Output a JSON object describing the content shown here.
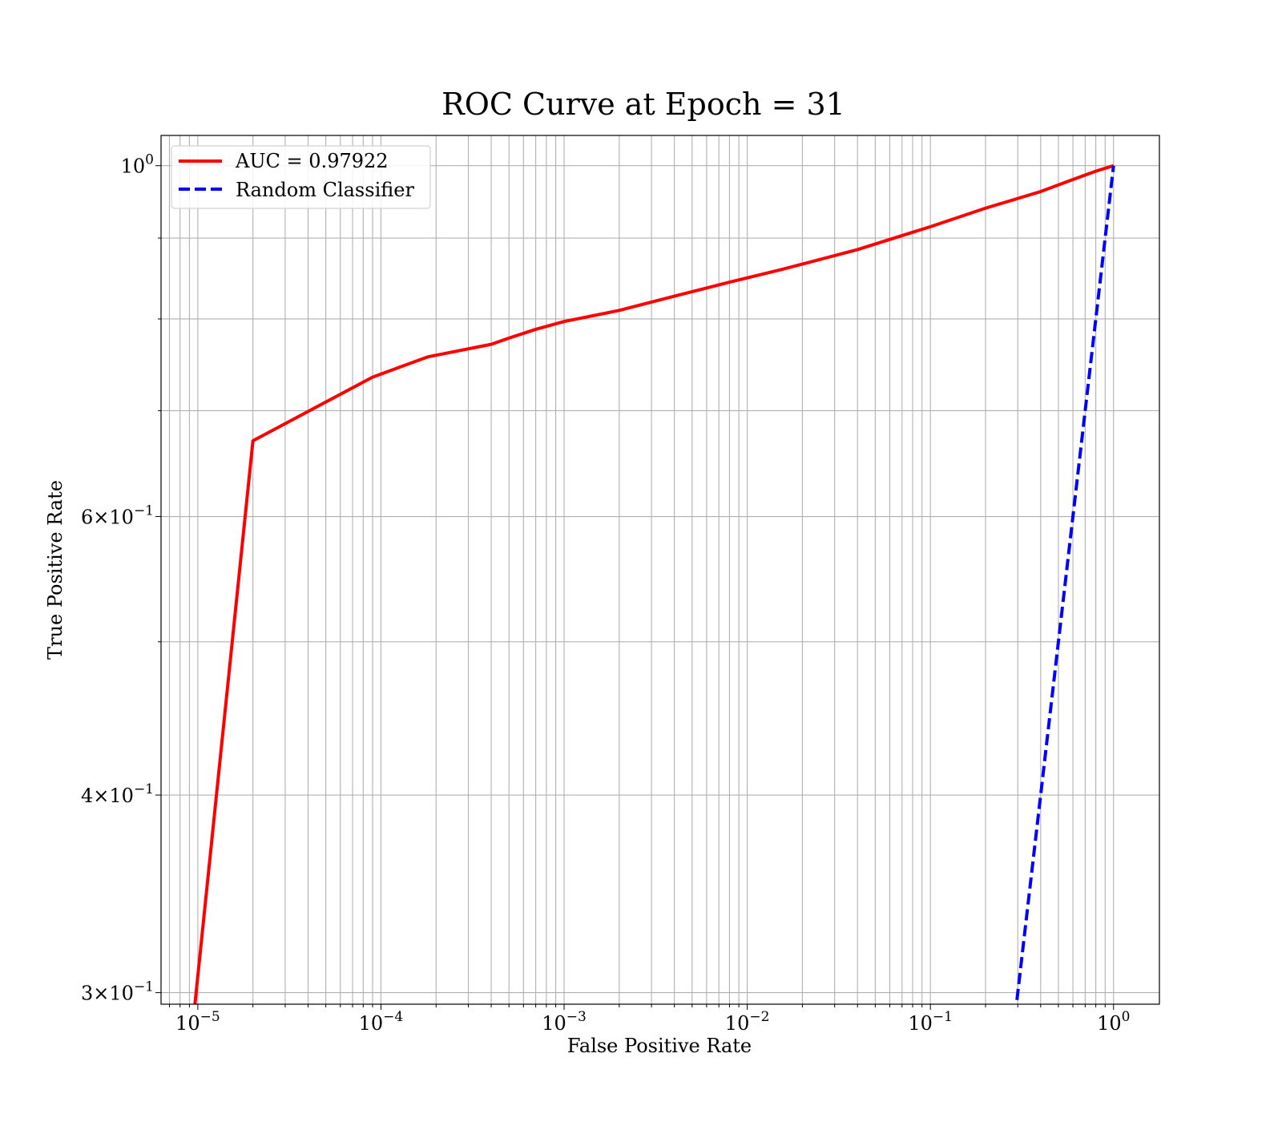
{
  "chart_data": {
    "type": "line",
    "title": "ROC Curve at Epoch = 31",
    "xlabel": "False Positive Rate",
    "ylabel": "True Positive Rate",
    "xscale": "log",
    "yscale": "log",
    "xlim": [
      6.3e-06,
      1.78
    ],
    "ylim": [
      0.295,
      1.045
    ],
    "grid": "both",
    "legend_position": "top-left",
    "x_ticks": [
      {
        "value": 1e-05,
        "base": "10",
        "exp": "−5"
      },
      {
        "value": 0.0001,
        "base": "10",
        "exp": "−4"
      },
      {
        "value": 0.001,
        "base": "10",
        "exp": "−3"
      },
      {
        "value": 0.01,
        "base": "10",
        "exp": "−2"
      },
      {
        "value": 0.1,
        "base": "10",
        "exp": "−1"
      },
      {
        "value": 1,
        "base": "10",
        "exp": "0"
      }
    ],
    "y_ticks": [
      {
        "value": 1,
        "mant": "",
        "base": "10",
        "exp": "0"
      },
      {
        "value": 0.6,
        "mant": "6×",
        "base": "10",
        "exp": "−1"
      },
      {
        "value": 0.4,
        "mant": "4×",
        "base": "10",
        "exp": "−1"
      },
      {
        "value": 0.3,
        "mant": "3×",
        "base": "10",
        "exp": "−1"
      }
    ],
    "series": [
      {
        "name": "AUC = 0.97922",
        "color": "#ff0000",
        "style": "solid",
        "x": [
          9.5e-06,
          2e-05,
          9e-05,
          0.00018,
          0.0004,
          0.0005,
          0.0007,
          0.001,
          0.002,
          0.004,
          0.008,
          0.015,
          0.04,
          0.1,
          0.2,
          0.4,
          0.6,
          0.8,
          1.0
        ],
        "y": [
          0.29,
          0.67,
          0.735,
          0.757,
          0.771,
          0.778,
          0.788,
          0.797,
          0.81,
          0.827,
          0.844,
          0.859,
          0.885,
          0.915,
          0.94,
          0.963,
          0.98,
          0.992,
          1.0
        ]
      },
      {
        "name": "Random Classifier",
        "color": "#0000ff",
        "style": "dashed",
        "x": [
          0.29,
          1.0
        ],
        "y": [
          0.29,
          1.0
        ]
      }
    ]
  }
}
